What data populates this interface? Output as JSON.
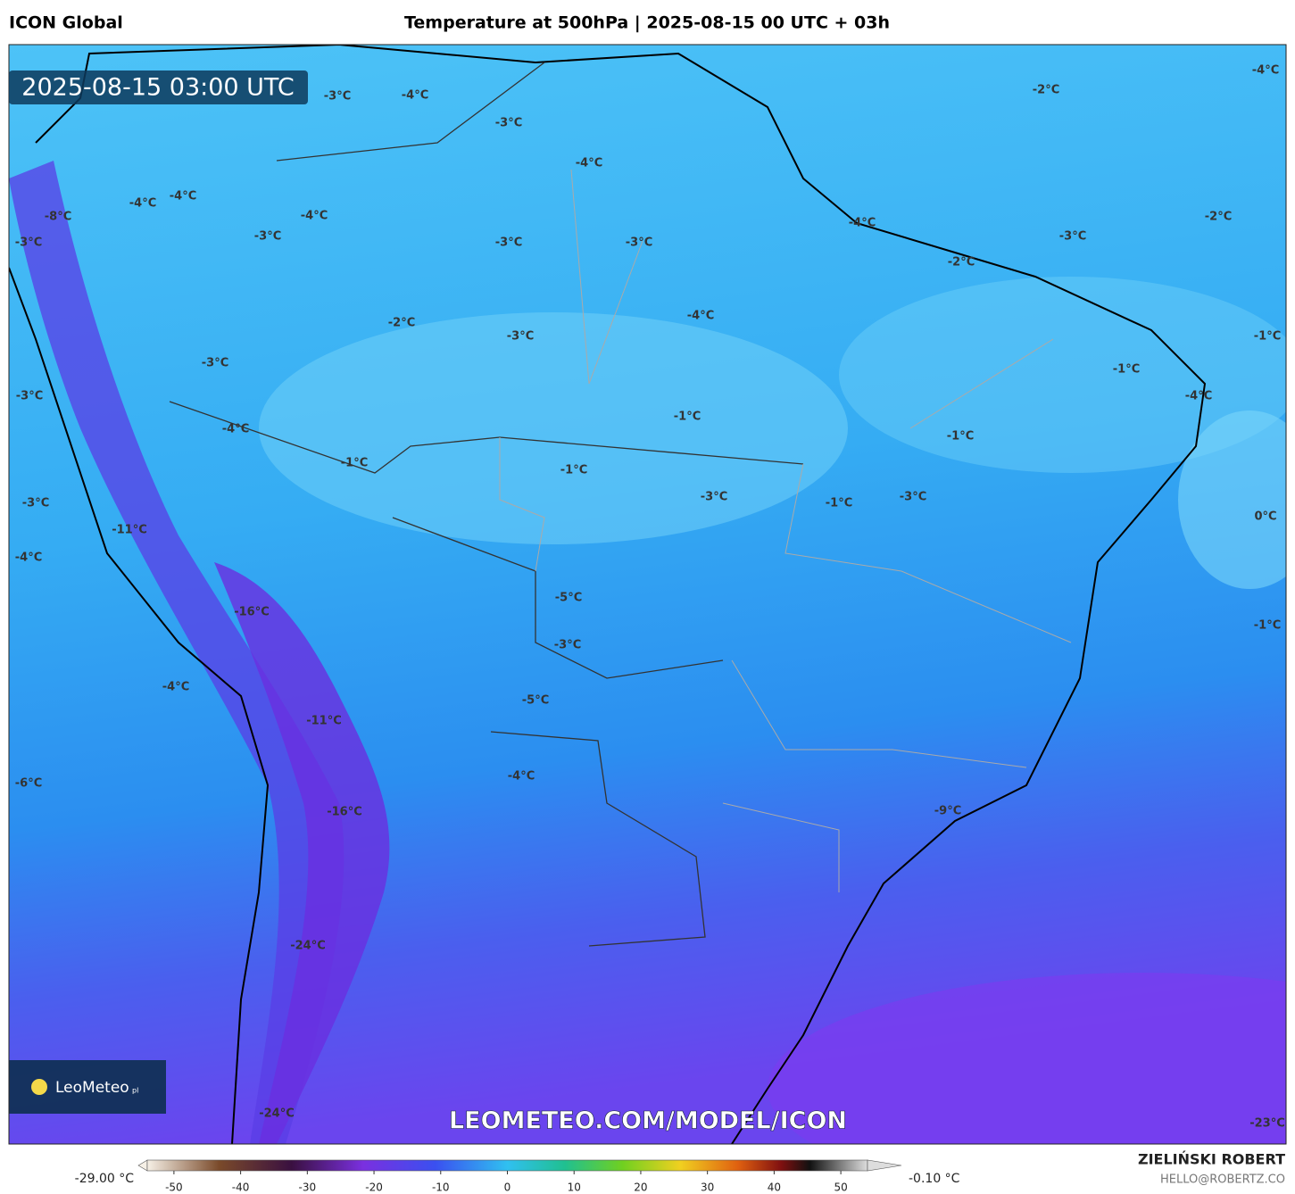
{
  "header": {
    "model": "ICON Global",
    "title": "Temperature at 500hPa | 2025-08-15 00 UTC + 03h"
  },
  "map": {
    "timestamp": "2025-08-15 03:00 UTC",
    "logo": "LeoMeteo",
    "logo_suffix": "pl",
    "watermark": "LEOMETEO.COM/MODEL/ICON",
    "labels": [
      "-3°C",
      "-4°C",
      "-2°C",
      "-4°C",
      "-3°C",
      "-4°C",
      "-4°C",
      "-4°C",
      "-8°C",
      "-4°C",
      "-3°C",
      "-3°C",
      "-3°C",
      "-3°C",
      "-4°C",
      "-3°C",
      "-2°C",
      "-2°C",
      "-2°C",
      "-3°C",
      "-4°C",
      "-1°C",
      "-3°C",
      "-1°C",
      "-4°C",
      "-3°C",
      "-1°C",
      "-4°C",
      "-1°C",
      "-1°C",
      "-1°C",
      "-3°C",
      "-1°C",
      "-3°C",
      "-3°C",
      "0°C",
      "-11°C",
      "-4°C",
      "-16°C",
      "-5°C",
      "-1°C",
      "-3°C",
      "-4°C",
      "-5°C",
      "-11°C",
      "-6°C",
      "-4°C",
      "-16°C",
      "-9°C",
      "-24°C",
      "-24°C",
      "-23°C"
    ]
  },
  "colorbar": {
    "min_label": "-29.00 °C",
    "max_label": "-0.10 °C",
    "lim": [
      -54,
      54
    ],
    "ticks": [
      -50,
      -40,
      -30,
      -20,
      -10,
      0,
      10,
      20,
      30,
      40,
      50
    ]
  },
  "footer": {
    "author": "ZIELIŃSKI ROBERT",
    "email": "HELLO@ROBERTZ.CO"
  }
}
